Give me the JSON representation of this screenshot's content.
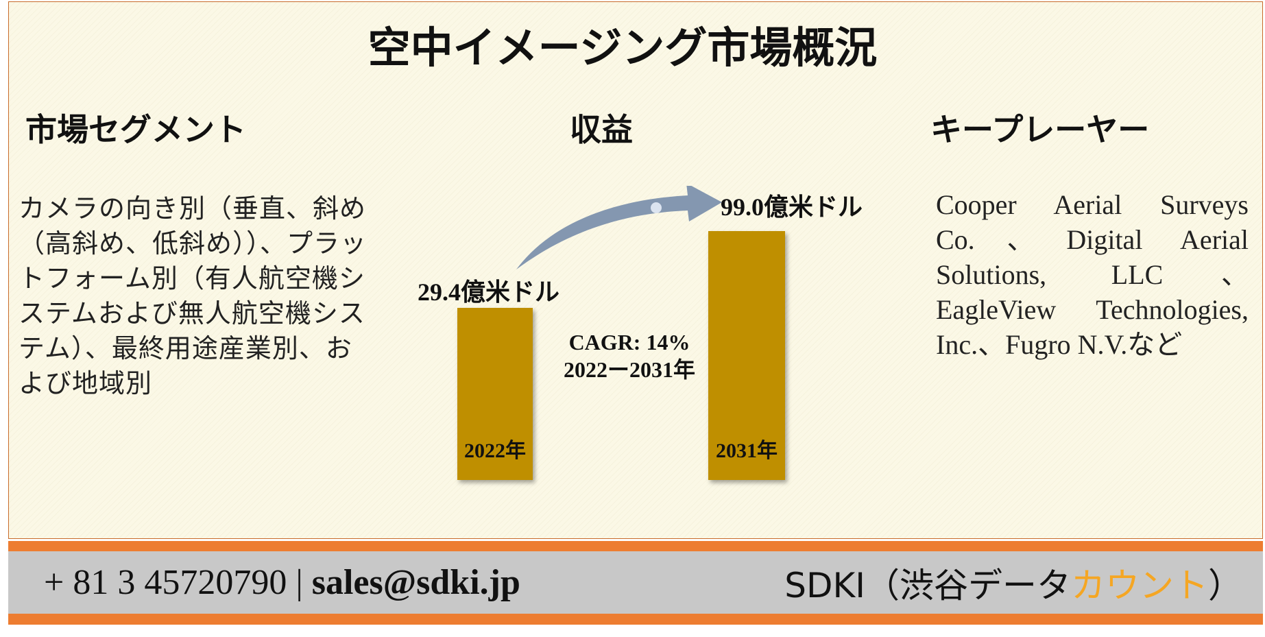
{
  "title": "空中イメージング市場概況",
  "headings": {
    "segment": "市場セグメント",
    "revenue": "収益",
    "key_players": "キープレーヤー"
  },
  "segment_text": "カメラの向き別（垂直、斜め（高斜め、低斜め））、プラットフォーム別（有人航空機システムおよび無人航空機システム）、最終用途産業別、および地域別",
  "key_players_text": "Cooper Aerial Surveys Co.、Digital Aerial Solutions, LLC、EagleView Technologies, Inc.、Fugro N.V.など",
  "revenue": {
    "bars": [
      {
        "year_label": "2022年",
        "value_label": "29.4億米ドル",
        "value": 29.4
      },
      {
        "year_label": "2031年",
        "value_label": "99.0億米ドル",
        "value": 99.0
      }
    ],
    "cagr_line1": "CAGR: 14%",
    "cagr_line2": "2022ー2031年",
    "bar_color": "#bf8f00",
    "arrow_color": "#8497b0"
  },
  "footer": {
    "phone": "+ 81 3 45720790",
    "separator": "|",
    "email": "sales@sdki.jp",
    "brand_prefix": "SDKI（渋谷データ",
    "brand_accent": "カウント",
    "brand_suffix": "）",
    "accent_color": "#f5a623",
    "bar_color": "#ed7d31"
  }
}
